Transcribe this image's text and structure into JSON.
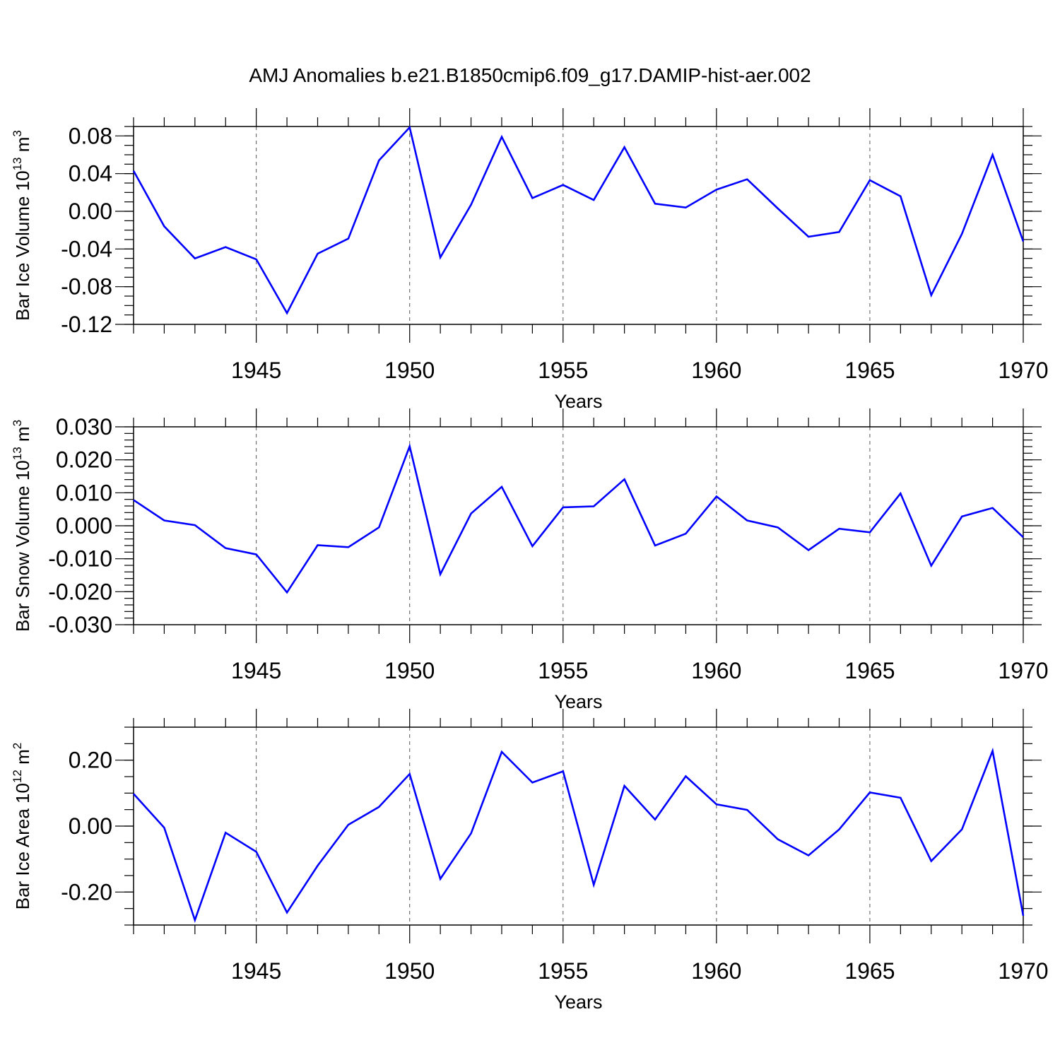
{
  "title": "AMJ Anomalies b.e21.B1850cmip6.f09_g17.DAMIP-hist-aer.002",
  "chart_data": [
    {
      "type": "line",
      "ylabel": {
        "main": "Bar Ice Volume 10",
        "exp": "13",
        "unit": " m",
        "unit_exp": "3"
      },
      "xlabel": "Years",
      "xlim": [
        1941,
        1970
      ],
      "ylim": [
        -0.12,
        0.09
      ],
      "xticks": [
        1945,
        1950,
        1955,
        1960,
        1965,
        1970
      ],
      "xtick_labels": [
        "1945",
        "1950",
        "1955",
        "1960",
        "1965",
        "1970"
      ],
      "yticks": [
        -0.12,
        -0.08,
        -0.04,
        0.0,
        0.04,
        0.08
      ],
      "ytick_labels": [
        "-0.12",
        "-0.08",
        "-0.04",
        "0.00",
        "0.04",
        "0.08"
      ],
      "yminor_step": 0.01,
      "grid_x": true,
      "color": "#0000ff",
      "series": [
        {
          "name": "Bar Ice Volume",
          "x": [
            1941,
            1942,
            1943,
            1944,
            1945,
            1946,
            1947,
            1948,
            1949,
            1950,
            1951,
            1952,
            1953,
            1954,
            1955,
            1956,
            1957,
            1958,
            1959,
            1960,
            1961,
            1962,
            1963,
            1964,
            1965,
            1966,
            1967,
            1968,
            1969,
            1970
          ],
          "values": [
            0.043,
            -0.016,
            -0.05,
            -0.038,
            -0.051,
            -0.108,
            -0.045,
            -0.029,
            0.054,
            0.089,
            -0.049,
            0.007,
            0.079,
            0.014,
            0.028,
            0.012,
            0.068,
            0.008,
            0.004,
            0.023,
            0.034,
            0.003,
            -0.027,
            -0.022,
            0.033,
            0.016,
            -0.089,
            -0.024,
            0.06,
            -0.032
          ]
        }
      ]
    },
    {
      "type": "line",
      "ylabel": {
        "main": "Bar Snow Volume 10",
        "exp": "13",
        "unit": " m",
        "unit_exp": "3"
      },
      "xlabel": "Years",
      "xlim": [
        1941,
        1970
      ],
      "ylim": [
        -0.03,
        0.03
      ],
      "xticks": [
        1945,
        1950,
        1955,
        1960,
        1965,
        1970
      ],
      "xtick_labels": [
        "1945",
        "1950",
        "1955",
        "1960",
        "1965",
        "1970"
      ],
      "yticks": [
        -0.03,
        -0.02,
        -0.01,
        0.0,
        0.01,
        0.02,
        0.03
      ],
      "ytick_labels": [
        "-0.030",
        "-0.020",
        "-0.010",
        "0.000",
        "0.010",
        "0.020",
        "0.030"
      ],
      "yminor_step": 0.002,
      "grid_x": true,
      "color": "#0000ff",
      "series": [
        {
          "name": "Bar Snow Volume",
          "x": [
            1941,
            1942,
            1943,
            1944,
            1945,
            1946,
            1947,
            1948,
            1949,
            1950,
            1951,
            1952,
            1953,
            1954,
            1955,
            1956,
            1957,
            1958,
            1959,
            1960,
            1961,
            1962,
            1963,
            1964,
            1965,
            1966,
            1967,
            1968,
            1969,
            1970
          ],
          "values": [
            0.0078,
            0.0016,
            0.0002,
            -0.0068,
            -0.0087,
            -0.0202,
            -0.0059,
            -0.0065,
            -0.0005,
            0.0241,
            -0.0147,
            0.0037,
            0.0118,
            -0.0062,
            0.0056,
            0.0059,
            0.0141,
            -0.006,
            -0.0024,
            0.0089,
            0.0016,
            -0.0005,
            -0.0074,
            -0.0009,
            -0.002,
            0.0098,
            -0.0121,
            0.0028,
            0.0054,
            -0.0035
          ]
        }
      ]
    },
    {
      "type": "line",
      "ylabel": {
        "main": "Bar Ice Area 10",
        "exp": "12",
        "unit": " m",
        "unit_exp": "2"
      },
      "xlabel": "Years",
      "xlim": [
        1941,
        1970
      ],
      "ylim": [
        -0.3,
        0.3
      ],
      "xticks": [
        1945,
        1950,
        1955,
        1960,
        1965,
        1970
      ],
      "xtick_labels": [
        "1945",
        "1950",
        "1955",
        "1960",
        "1965",
        "1970"
      ],
      "yticks": [
        -0.2,
        0.0,
        0.2
      ],
      "ytick_labels": [
        "-0.20",
        "0.00",
        "0.20"
      ],
      "yminor_step": 0.05,
      "grid_x": true,
      "color": "#0000ff",
      "series": [
        {
          "name": "Bar Ice Area",
          "x": [
            1941,
            1942,
            1943,
            1944,
            1945,
            1946,
            1947,
            1948,
            1949,
            1950,
            1951,
            1952,
            1953,
            1954,
            1955,
            1956,
            1957,
            1958,
            1959,
            1960,
            1961,
            1962,
            1963,
            1964,
            1965,
            1966,
            1967,
            1968,
            1969,
            1970
          ],
          "values": [
            0.098,
            -0.005,
            -0.285,
            -0.02,
            -0.078,
            -0.262,
            -0.12,
            0.004,
            0.058,
            0.158,
            -0.16,
            -0.022,
            0.225,
            0.132,
            0.166,
            -0.178,
            0.122,
            0.02,
            0.151,
            0.066,
            0.049,
            -0.04,
            -0.089,
            -0.01,
            0.102,
            0.086,
            -0.106,
            -0.01,
            0.228,
            -0.272
          ]
        }
      ]
    }
  ]
}
